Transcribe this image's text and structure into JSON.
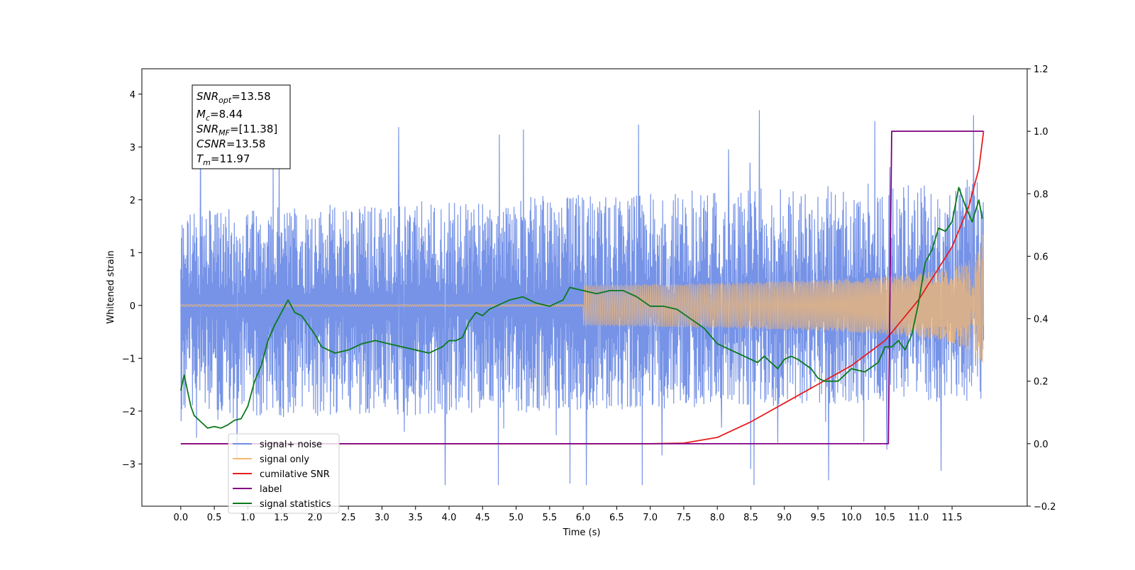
{
  "chart_data": {
    "type": "line",
    "xlabel": "Time (s)",
    "ylabel": "Whitened strain",
    "xlim": [
      -0.58,
      12.62
    ],
    "ylim": [
      -3.8,
      4.48
    ],
    "y2lim": [
      -0.2,
      1.2
    ],
    "x_ticks": [
      "0.0",
      "0.5",
      "1.0",
      "1.5",
      "2.0",
      "2.5",
      "3.0",
      "3.5",
      "4.0",
      "4.5",
      "5.0",
      "5.5",
      "6.0",
      "6.5",
      "7.0",
      "7.5",
      "8.0",
      "8.5",
      "9.0",
      "9.5",
      "10.0",
      "10.5",
      "11.0",
      "11.5"
    ],
    "y_ticks": [
      "−3",
      "−2",
      "−1",
      "0",
      "1",
      "2",
      "3",
      "4"
    ],
    "y2_ticks": [
      "−0.2",
      "0.0",
      "0.2",
      "0.4",
      "0.6",
      "0.8",
      "1.0",
      "1.2"
    ],
    "grid": false,
    "legend_position": "lower-left",
    "info_box": {
      "lines": [
        {
          "var": "SNR",
          "sub": "opt",
          "value": "=13.58"
        },
        {
          "var": "M",
          "sub": "c",
          "value": "=8.44"
        },
        {
          "var": "SNR",
          "sub": "MF",
          "value": "=[11.38]"
        },
        {
          "var": "CSNR",
          "sub": "",
          "value": "=13.58"
        },
        {
          "var": "T",
          "sub": "m",
          "value": "=11.97"
        }
      ]
    },
    "series": [
      {
        "name": "signal+ noise",
        "axis": "left",
        "color": "#6f8de6",
        "kind": "noise",
        "x_range": [
          0,
          11.97
        ],
        "band_low": [
          -2.0,
          -1.6
        ],
        "band_high": [
          1.6,
          2.2
        ],
        "peak_min": -3.4,
        "peak_max": 4.0
      },
      {
        "name": "signal only",
        "axis": "left",
        "color": "#f5b870",
        "kind": "chirp",
        "x_range": [
          0,
          11.97
        ],
        "amplitude_start": 0.0,
        "amplitude_end": 1.45
      },
      {
        "name": "cumilative SNR",
        "axis": "right",
        "color": "#e61e1e",
        "x": [
          0,
          7.0,
          7.5,
          8.0,
          8.5,
          9.0,
          9.5,
          10.0,
          10.5,
          11.0,
          11.5,
          11.75,
          11.9,
          11.97
        ],
        "values": [
          0,
          0,
          0.002,
          0.02,
          0.07,
          0.13,
          0.19,
          0.25,
          0.33,
          0.46,
          0.63,
          0.76,
          0.88,
          1.0
        ]
      },
      {
        "name": "label",
        "axis": "right",
        "color": "#800080",
        "x": [
          0,
          10.55,
          10.55,
          10.6,
          11.97
        ],
        "values": [
          0,
          0,
          0,
          1,
          1
        ]
      },
      {
        "name": "signal statistics",
        "axis": "right",
        "color": "#0a7a1a",
        "x": [
          0,
          0.05,
          0.1,
          0.15,
          0.2,
          0.3,
          0.4,
          0.5,
          0.6,
          0.7,
          0.8,
          0.9,
          1.0,
          1.1,
          1.2,
          1.3,
          1.4,
          1.5,
          1.55,
          1.6,
          1.7,
          1.8,
          1.9,
          2.0,
          2.1,
          2.3,
          2.5,
          2.7,
          2.9,
          3.1,
          3.3,
          3.5,
          3.7,
          3.9,
          4.0,
          4.1,
          4.2,
          4.3,
          4.4,
          4.5,
          4.6,
          4.7,
          4.9,
          5.1,
          5.3,
          5.5,
          5.7,
          5.8,
          6.0,
          6.2,
          6.4,
          6.6,
          6.8,
          7.0,
          7.2,
          7.4,
          7.6,
          7.8,
          8.0,
          8.2,
          8.4,
          8.6,
          8.7,
          8.9,
          9.0,
          9.1,
          9.2,
          9.4,
          9.5,
          9.6,
          9.8,
          10.0,
          10.2,
          10.4,
          10.5,
          10.6,
          10.7,
          10.8,
          10.9,
          11.0,
          11.1,
          11.2,
          11.3,
          11.4,
          11.5,
          11.6,
          11.7,
          11.8,
          11.9,
          11.95
        ],
        "values": [
          0.17,
          0.22,
          0.17,
          0.12,
          0.09,
          0.07,
          0.05,
          0.055,
          0.05,
          0.06,
          0.075,
          0.08,
          0.12,
          0.2,
          0.25,
          0.33,
          0.38,
          0.42,
          0.44,
          0.46,
          0.42,
          0.41,
          0.38,
          0.35,
          0.31,
          0.29,
          0.3,
          0.32,
          0.33,
          0.32,
          0.31,
          0.3,
          0.29,
          0.31,
          0.33,
          0.33,
          0.34,
          0.39,
          0.42,
          0.41,
          0.43,
          0.44,
          0.46,
          0.47,
          0.45,
          0.44,
          0.46,
          0.5,
          0.49,
          0.48,
          0.49,
          0.49,
          0.47,
          0.44,
          0.44,
          0.43,
          0.4,
          0.37,
          0.32,
          0.3,
          0.28,
          0.26,
          0.28,
          0.24,
          0.27,
          0.28,
          0.27,
          0.24,
          0.21,
          0.2,
          0.2,
          0.24,
          0.23,
          0.26,
          0.31,
          0.31,
          0.33,
          0.3,
          0.35,
          0.45,
          0.58,
          0.62,
          0.69,
          0.68,
          0.71,
          0.82,
          0.76,
          0.71,
          0.78,
          0.72
        ]
      }
    ]
  }
}
